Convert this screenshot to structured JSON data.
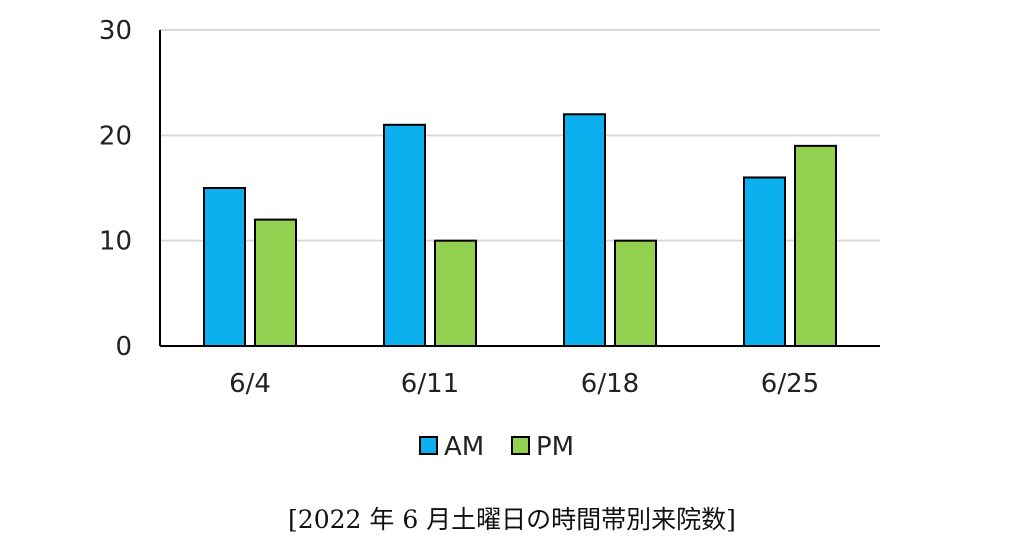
{
  "chart_data": {
    "type": "bar",
    "categories": [
      "6/4",
      "6/11",
      "6/18",
      "6/25"
    ],
    "series": [
      {
        "name": "AM",
        "values": [
          15,
          21,
          22,
          16
        ],
        "color": "#0DB0EE"
      },
      {
        "name": "PM",
        "values": [
          12,
          10,
          10,
          19
        ],
        "color": "#92D050"
      }
    ],
    "yticks": [
      0,
      10,
      20,
      30
    ],
    "ylim": [
      0,
      30
    ],
    "grid": true,
    "legend": "bottom",
    "caption": "[2022 年 6 月土曜日の時間帯別来院数]"
  }
}
